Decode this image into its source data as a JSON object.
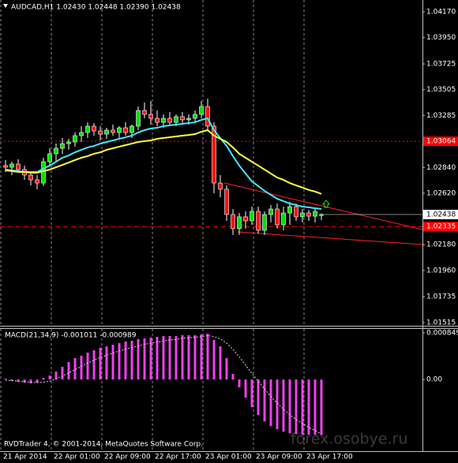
{
  "chart_data": [
    {
      "type": "candlestick",
      "title": "AUDCAD,H1  1.02430 1.02448 1.02390 1.02438",
      "categories": [
        "21 Apr 2014",
        null,
        null,
        null,
        null,
        null,
        null,
        null,
        "22 Apr 01:00",
        null,
        null,
        null,
        null,
        null,
        null,
        null,
        "22 Apr 09:00",
        null,
        null,
        null,
        null,
        null,
        null,
        null,
        "22 Apr 17:00",
        null,
        null,
        null,
        null,
        null,
        null,
        null,
        "23 Apr 01:00",
        null,
        null,
        null,
        null,
        null,
        null,
        null,
        "23 Apr 09:00",
        null,
        null,
        null,
        null,
        null,
        null,
        null,
        "23 Apr 17:00",
        null,
        null
      ],
      "open": [
        1.02856,
        1.02842,
        1.02869,
        1.02822,
        1.02775,
        1.02734,
        1.02707,
        1.02889,
        1.02957,
        1.03004,
        1.03044,
        1.03058,
        1.03112,
        1.03139,
        1.03193,
        1.03152,
        1.03125,
        1.03159,
        1.03139,
        1.03179,
        1.03139,
        1.03193,
        1.03327,
        1.03294,
        1.0326,
        1.03226,
        1.0326,
        1.03226,
        1.03274,
        1.03247,
        1.0326,
        1.03294,
        1.03361,
        1.03193,
        1.02707,
        1.02654,
        1.02438,
        1.02317,
        1.02418,
        1.02384,
        1.02465,
        1.02303,
        1.02438,
        1.02485,
        1.0235,
        1.02451,
        1.02505,
        1.02418,
        1.02451,
        1.02424,
        1.0243
      ],
      "high": [
        1.02903,
        1.02889,
        1.0291,
        1.02856,
        1.02802,
        1.02775,
        1.02923,
        1.03004,
        1.03044,
        1.03092,
        1.03085,
        1.03139,
        1.03193,
        1.03226,
        1.0322,
        1.03193,
        1.03179,
        1.03206,
        1.03193,
        1.03226,
        1.03206,
        1.03361,
        1.03395,
        1.03408,
        1.03327,
        1.03294,
        1.03314,
        1.03294,
        1.03314,
        1.03294,
        1.03327,
        1.03408,
        1.03429,
        1.03226,
        1.02775,
        1.02687,
        1.02485,
        1.02451,
        1.02465,
        1.02505,
        1.02505,
        1.02465,
        1.02519,
        1.02532,
        1.02505,
        1.02546,
        1.02532,
        1.02485,
        1.02478,
        1.02485,
        1.02448
      ],
      "low": [
        1.02802,
        1.02775,
        1.02802,
        1.02734,
        1.02687,
        1.02654,
        1.02681,
        1.02856,
        1.02889,
        1.02957,
        1.02991,
        1.03018,
        1.03058,
        1.03092,
        1.03112,
        1.03071,
        1.03085,
        1.03112,
        1.03092,
        1.03112,
        1.03092,
        1.03159,
        1.0326,
        1.03206,
        1.03193,
        1.03179,
        1.03206,
        1.03193,
        1.0322,
        1.03206,
        1.0322,
        1.0326,
        1.03159,
        1.0262,
        1.02586,
        1.02384,
        1.02263,
        1.02263,
        1.02317,
        1.0235,
        1.02276,
        1.02263,
        1.0237,
        1.02317,
        1.02303,
        1.0235,
        1.02384,
        1.0237,
        1.02384,
        1.0237,
        1.0239
      ],
      "close": [
        1.02842,
        1.02869,
        1.02822,
        1.02775,
        1.02734,
        1.02707,
        1.02889,
        1.02957,
        1.03004,
        1.03044,
        1.03058,
        1.03112,
        1.03139,
        1.03193,
        1.03152,
        1.03125,
        1.03159,
        1.03139,
        1.03179,
        1.03139,
        1.03193,
        1.03327,
        1.03294,
        1.0326,
        1.03226,
        1.0326,
        1.03226,
        1.03274,
        1.03247,
        1.0326,
        1.03294,
        1.03361,
        1.03193,
        1.02707,
        1.02654,
        1.02438,
        1.02317,
        1.02418,
        1.02384,
        1.02465,
        1.02303,
        1.02438,
        1.02485,
        1.0235,
        1.02451,
        1.02505,
        1.02418,
        1.02451,
        1.02424,
        1.02465,
        1.02438
      ],
      "up_color": "#00e000",
      "down_color": "#ff1010",
      "wick_color": "#ffffff",
      "lines": [
        {
          "color": "#40e8ff",
          "values": [
            1.02822,
            1.02815,
            1.02809,
            1.02802,
            1.02802,
            1.02802,
            1.02829,
            1.02856,
            1.02889,
            1.02923,
            1.02943,
            1.0297,
            1.02991,
            1.03011,
            1.03024,
            1.03044,
            1.03058,
            1.03071,
            1.03085,
            1.03098,
            1.03112,
            1.03139,
            1.03159,
            1.03173,
            1.03179,
            1.03193,
            1.032,
            1.03206,
            1.03213,
            1.0322,
            1.03226,
            1.03247,
            1.0326,
            1.03159,
            1.03092,
            1.03024,
            1.02937,
            1.02856,
            1.02788,
            1.02721,
            1.02681,
            1.0264,
            1.02606,
            1.02573,
            1.02552,
            1.02532,
            1.02519,
            1.02505,
            1.02499,
            1.02492,
            1.02485
          ]
        },
        {
          "color": "#ffff40",
          "values": [
            1.02815,
            1.02809,
            1.02802,
            1.02802,
            1.02795,
            1.02795,
            1.02809,
            1.02822,
            1.02842,
            1.02862,
            1.02882,
            1.02903,
            1.02923,
            1.02937,
            1.02957,
            1.0297,
            1.02991,
            1.03004,
            1.03018,
            1.03031,
            1.03044,
            1.03058,
            1.03065,
            1.03071,
            1.03085,
            1.03092,
            1.03098,
            1.03105,
            1.03112,
            1.03118,
            1.03125,
            1.03145,
            1.03159,
            1.03112,
            1.03085,
            1.03058,
            1.03011,
            1.02957,
            1.02923,
            1.02889,
            1.02856,
            1.02822,
            1.02788,
            1.02754,
            1.02734,
            1.02707,
            1.02687,
            1.02668,
            1.02648,
            1.02634,
            1.02614
          ]
        }
      ],
      "levels": [
        {
          "value": 1.03064,
          "color": "#ff0000"
        },
        {
          "value": 1.02335,
          "color": "#ff0000"
        }
      ],
      "ylim": [
        1.01494,
        1.04251
      ],
      "yticks": [
        {
          "value": 1.0417,
          "label": "1.04170"
        },
        {
          "value": 1.0395,
          "label": "1.03950"
        },
        1.03725,
        1.03505,
        1.03285,
        {
          "value": 1.0284,
          "label": "1.02840"
        },
        {
          "value": 1.0262,
          "label": "1.02620"
        },
        {
          "value": 1.0218,
          "label": "1.02180"
        },
        {
          "value": 1.0196,
          "label": "1.01960"
        },
        1.01735,
        1.01515
      ],
      "grid": true
    },
    {
      "type": "bar",
      "title": "MACD(21,34,9) -0.001011 -0.000989",
      "color": "#f040f0",
      "values": [
        1.4e-05,
        -2.9e-05,
        -4.3e-05,
        -5.8e-05,
        -7.2e-05,
        -5.8e-05,
        2.9e-05,
        7.2e-05,
        0.000144,
        0.00023,
        0.000317,
        0.000389,
        0.000432,
        0.000489,
        0.000532,
        0.000576,
        0.000604,
        0.000633,
        0.000662,
        0.000691,
        0.000705,
        0.000734,
        0.000748,
        0.000763,
        0.000777,
        0.000791,
        0.000791,
        0.000791,
        0.000806,
        0.000806,
        0.000806,
        0.00082,
        0.000835,
        0.00072,
        0.000604,
        0.000389,
        0.000101,
        -0.000144,
        -0.000331,
        -0.000504,
        -0.000648,
        -0.000763,
        -0.000849,
        -0.000907,
        -0.00095,
        -0.000979,
        -0.000993,
        -0.001007,
        -0.001007,
        -0.001007,
        -0.001011
      ],
      "signal": {
        "color": "#d8d8d8",
        "values": [
          -1e-05,
          -2e-05,
          -3e-05,
          -4e-05,
          -5e-05,
          -5.5e-05,
          -5e-05,
          -3e-05,
          1e-05,
          6e-05,
          0.00012,
          0.00018,
          0.00024,
          0.0003,
          0.00035,
          0.0004,
          0.00044,
          0.00048,
          0.00052,
          0.00055,
          0.00058,
          0.00061,
          0.00064,
          0.00066,
          0.00068,
          0.0007,
          0.00072,
          0.00073,
          0.00075,
          0.00076,
          0.00077,
          0.00078,
          0.0008,
          0.00078,
          0.00074,
          0.00066,
          0.00055,
          0.00041,
          0.00026,
          0.00011,
          -3e-05,
          -0.00017,
          -0.00031,
          -0.00043,
          -0.00054,
          -0.00064,
          -0.00073,
          -0.0008,
          -0.00087,
          -0.00093,
          -0.000989
        ]
      },
      "ylim": [
        -0.00129,
        0.000892
      ],
      "yticks": [
        0.000849,
        {
          "value": 0,
          "label": "0.00"
        }
      ],
      "copyright": "RVDTrader 4, © 2001-2014, MetaQuotes Software Corp.",
      "watermark": "forex.osobye.ru"
    }
  ]
}
